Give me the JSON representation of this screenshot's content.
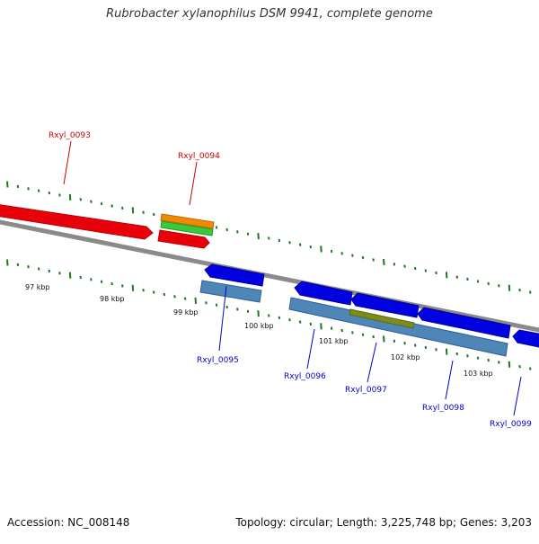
{
  "title": "Rubrobacter xylanophilus DSM 9941, complete genome",
  "footer": {
    "accession": "Accession: NC_008148",
    "info": "Topology: circular; Length: 3,225,748 bp; Genes: 3,203"
  },
  "colors": {
    "tick": "#1e7a1e",
    "backbone": "#808080",
    "red_gene": "#e8000a",
    "blue_gene": "#0000e0",
    "steelblue": "#4f86b8",
    "orange": "#f08a00",
    "green": "#3cc83c",
    "olive": "#7a8c1e",
    "red_label": "#cc0000",
    "blue_label": "#0000cc"
  },
  "scale_labels": [
    "97 kbp",
    "98 kbp",
    "99 kbp",
    "100 kbp",
    "101 kbp",
    "102 kbp",
    "103 kbp"
  ],
  "genes": [
    {
      "label": "Rxyl_0093",
      "strand": "forward",
      "color": "red_gene"
    },
    {
      "label": "Rxyl_0094",
      "strand": "forward",
      "color": "red_gene"
    },
    {
      "label": "Rxyl_0095",
      "strand": "reverse",
      "color": "blue_gene"
    },
    {
      "label": "Rxyl_0096",
      "strand": "reverse",
      "color": "blue_gene"
    },
    {
      "label": "Rxyl_0097",
      "strand": "reverse",
      "color": "blue_gene"
    },
    {
      "label": "Rxyl_0098",
      "strand": "reverse",
      "color": "blue_gene"
    },
    {
      "label": "Rxyl_0099",
      "strand": "reverse",
      "color": "blue_gene"
    }
  ]
}
